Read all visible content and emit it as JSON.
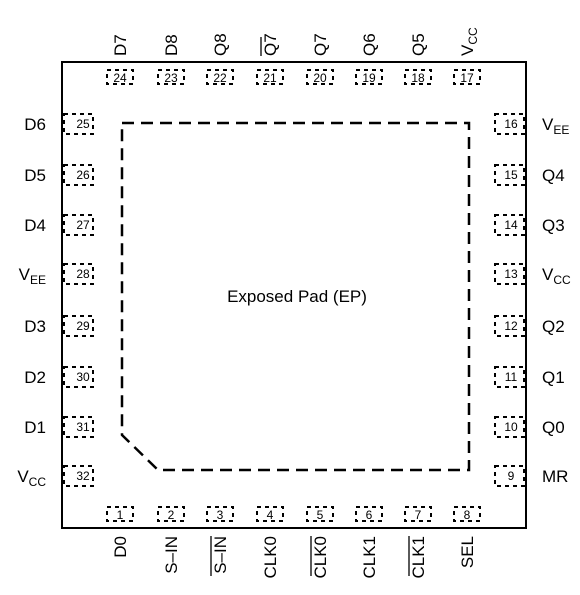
{
  "package": {
    "exposed_pad_label": "Exposed Pad (EP)"
  },
  "pins": {
    "top": [
      {
        "num": "24",
        "name": "D7",
        "sub": "",
        "overbar": false
      },
      {
        "num": "23",
        "name": "D8",
        "sub": "",
        "overbar": false
      },
      {
        "num": "22",
        "name": "Q8",
        "sub": "",
        "overbar": false
      },
      {
        "num": "21",
        "name": "Q7",
        "sub": "",
        "overbar": true
      },
      {
        "num": "20",
        "name": "Q7",
        "sub": "",
        "overbar": false
      },
      {
        "num": "19",
        "name": "Q6",
        "sub": "",
        "overbar": false
      },
      {
        "num": "18",
        "name": "Q5",
        "sub": "",
        "overbar": false
      },
      {
        "num": "17",
        "name": "V",
        "sub": "CC",
        "overbar": false
      }
    ],
    "bottom": [
      {
        "num": "1",
        "name": "D0",
        "sub": "",
        "overbar": false
      },
      {
        "num": "2",
        "name": "S–IN",
        "sub": "",
        "overbar": false
      },
      {
        "num": "3",
        "name": "S–IN",
        "sub": "",
        "overbar": true
      },
      {
        "num": "4",
        "name": "CLK0",
        "sub": "",
        "overbar": false
      },
      {
        "num": "5",
        "name": "CLK0",
        "sub": "",
        "overbar": true
      },
      {
        "num": "6",
        "name": "CLK1",
        "sub": "",
        "overbar": false
      },
      {
        "num": "7",
        "name": "CLK1",
        "sub": "",
        "overbar": true
      },
      {
        "num": "8",
        "name": "SEL",
        "sub": "",
        "overbar": false
      }
    ],
    "left": [
      {
        "num": "25",
        "name": "D6",
        "sub": ""
      },
      {
        "num": "26",
        "name": "D5",
        "sub": ""
      },
      {
        "num": "27",
        "name": "D4",
        "sub": ""
      },
      {
        "num": "28",
        "name": "V",
        "sub": "EE"
      },
      {
        "num": "29",
        "name": "D3",
        "sub": ""
      },
      {
        "num": "30",
        "name": "D2",
        "sub": ""
      },
      {
        "num": "31",
        "name": "D1",
        "sub": ""
      },
      {
        "num": "32",
        "name": "V",
        "sub": "CC"
      }
    ],
    "right": [
      {
        "num": "16",
        "name": "V",
        "sub": "EE"
      },
      {
        "num": "15",
        "name": "Q4",
        "sub": ""
      },
      {
        "num": "14",
        "name": "Q3",
        "sub": ""
      },
      {
        "num": "13",
        "name": "V",
        "sub": "CC"
      },
      {
        "num": "12",
        "name": "Q2",
        "sub": ""
      },
      {
        "num": "11",
        "name": "Q1",
        "sub": ""
      },
      {
        "num": "10",
        "name": "Q0",
        "sub": ""
      },
      {
        "num": "9",
        "name": "MR",
        "sub": ""
      }
    ]
  }
}
